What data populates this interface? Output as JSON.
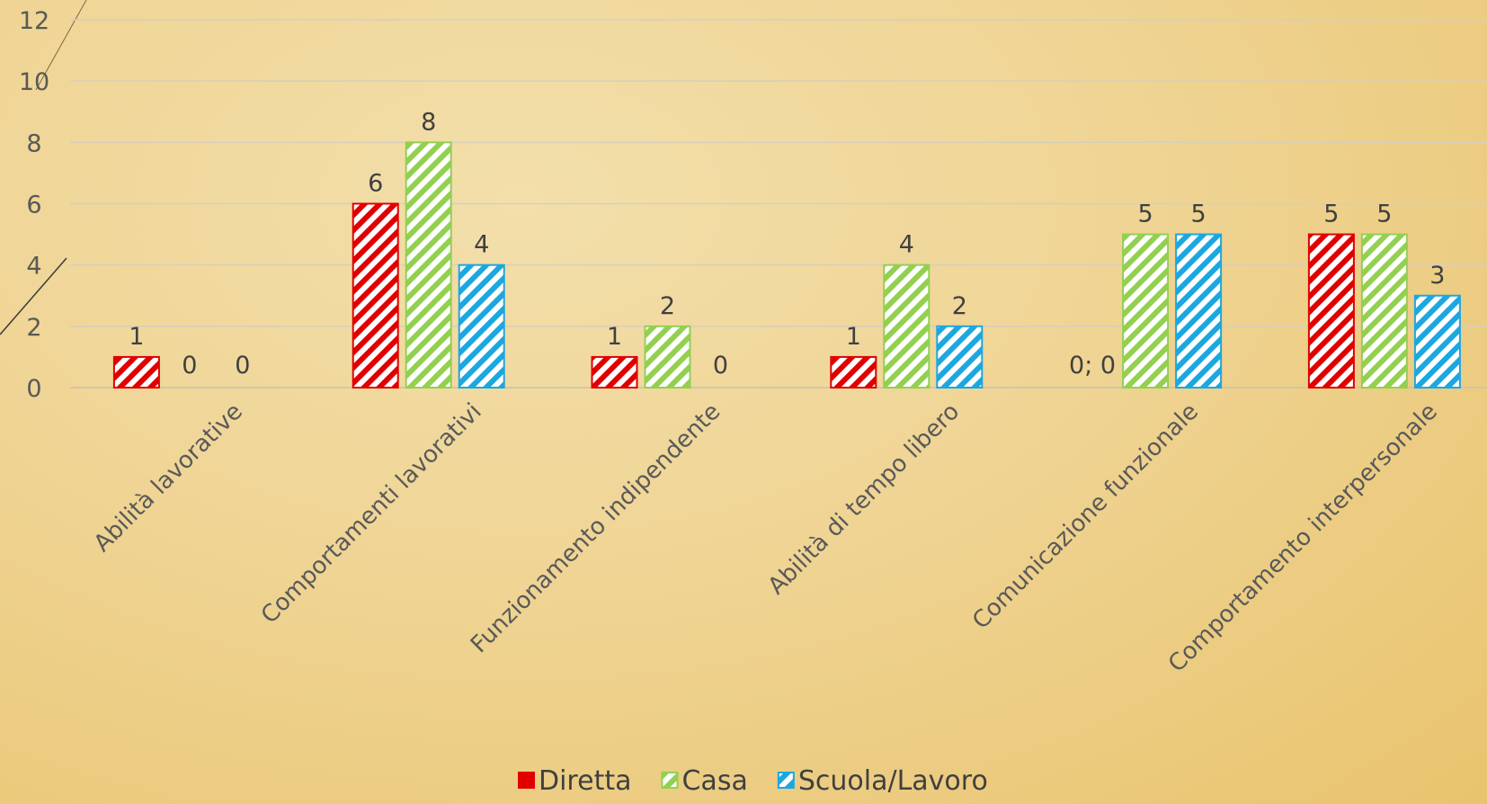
{
  "chart_data": {
    "type": "bar",
    "categories": [
      "Abilità lavorative",
      "Comportamenti lavorativi",
      "Funzionamento indipendente",
      "Abilità di tempo libero",
      "Comunicazione funzionale",
      "Comportamento interpersonale"
    ],
    "series": [
      {
        "name": "Diretta",
        "values": [
          1,
          6,
          1,
          1,
          0,
          5
        ],
        "color": "#e00000"
      },
      {
        "name": "Casa",
        "values": [
          0,
          8,
          2,
          4,
          5,
          5
        ],
        "color": "#92d050"
      },
      {
        "name": "Scuola/Lavoro",
        "values": [
          0,
          4,
          0,
          2,
          5,
          3
        ],
        "color": "#1ca7e0"
      }
    ],
    "data_labels": [
      [
        "1",
        "0",
        "0"
      ],
      [
        "6",
        "8",
        "4"
      ],
      [
        "1",
        "2",
        "0"
      ],
      [
        "1",
        "4",
        "2"
      ],
      [
        "0; 0",
        "5",
        "5"
      ],
      [
        "5",
        "5",
        "3"
      ]
    ],
    "y_ticks": [
      "0",
      "2",
      "4",
      "6",
      "8",
      "10",
      "12"
    ],
    "ylim": [
      0,
      12
    ],
    "grid": true,
    "pattern": "diagonal-stripes",
    "legend_position": "bottom",
    "title": "",
    "xlabel": "",
    "ylabel": ""
  }
}
